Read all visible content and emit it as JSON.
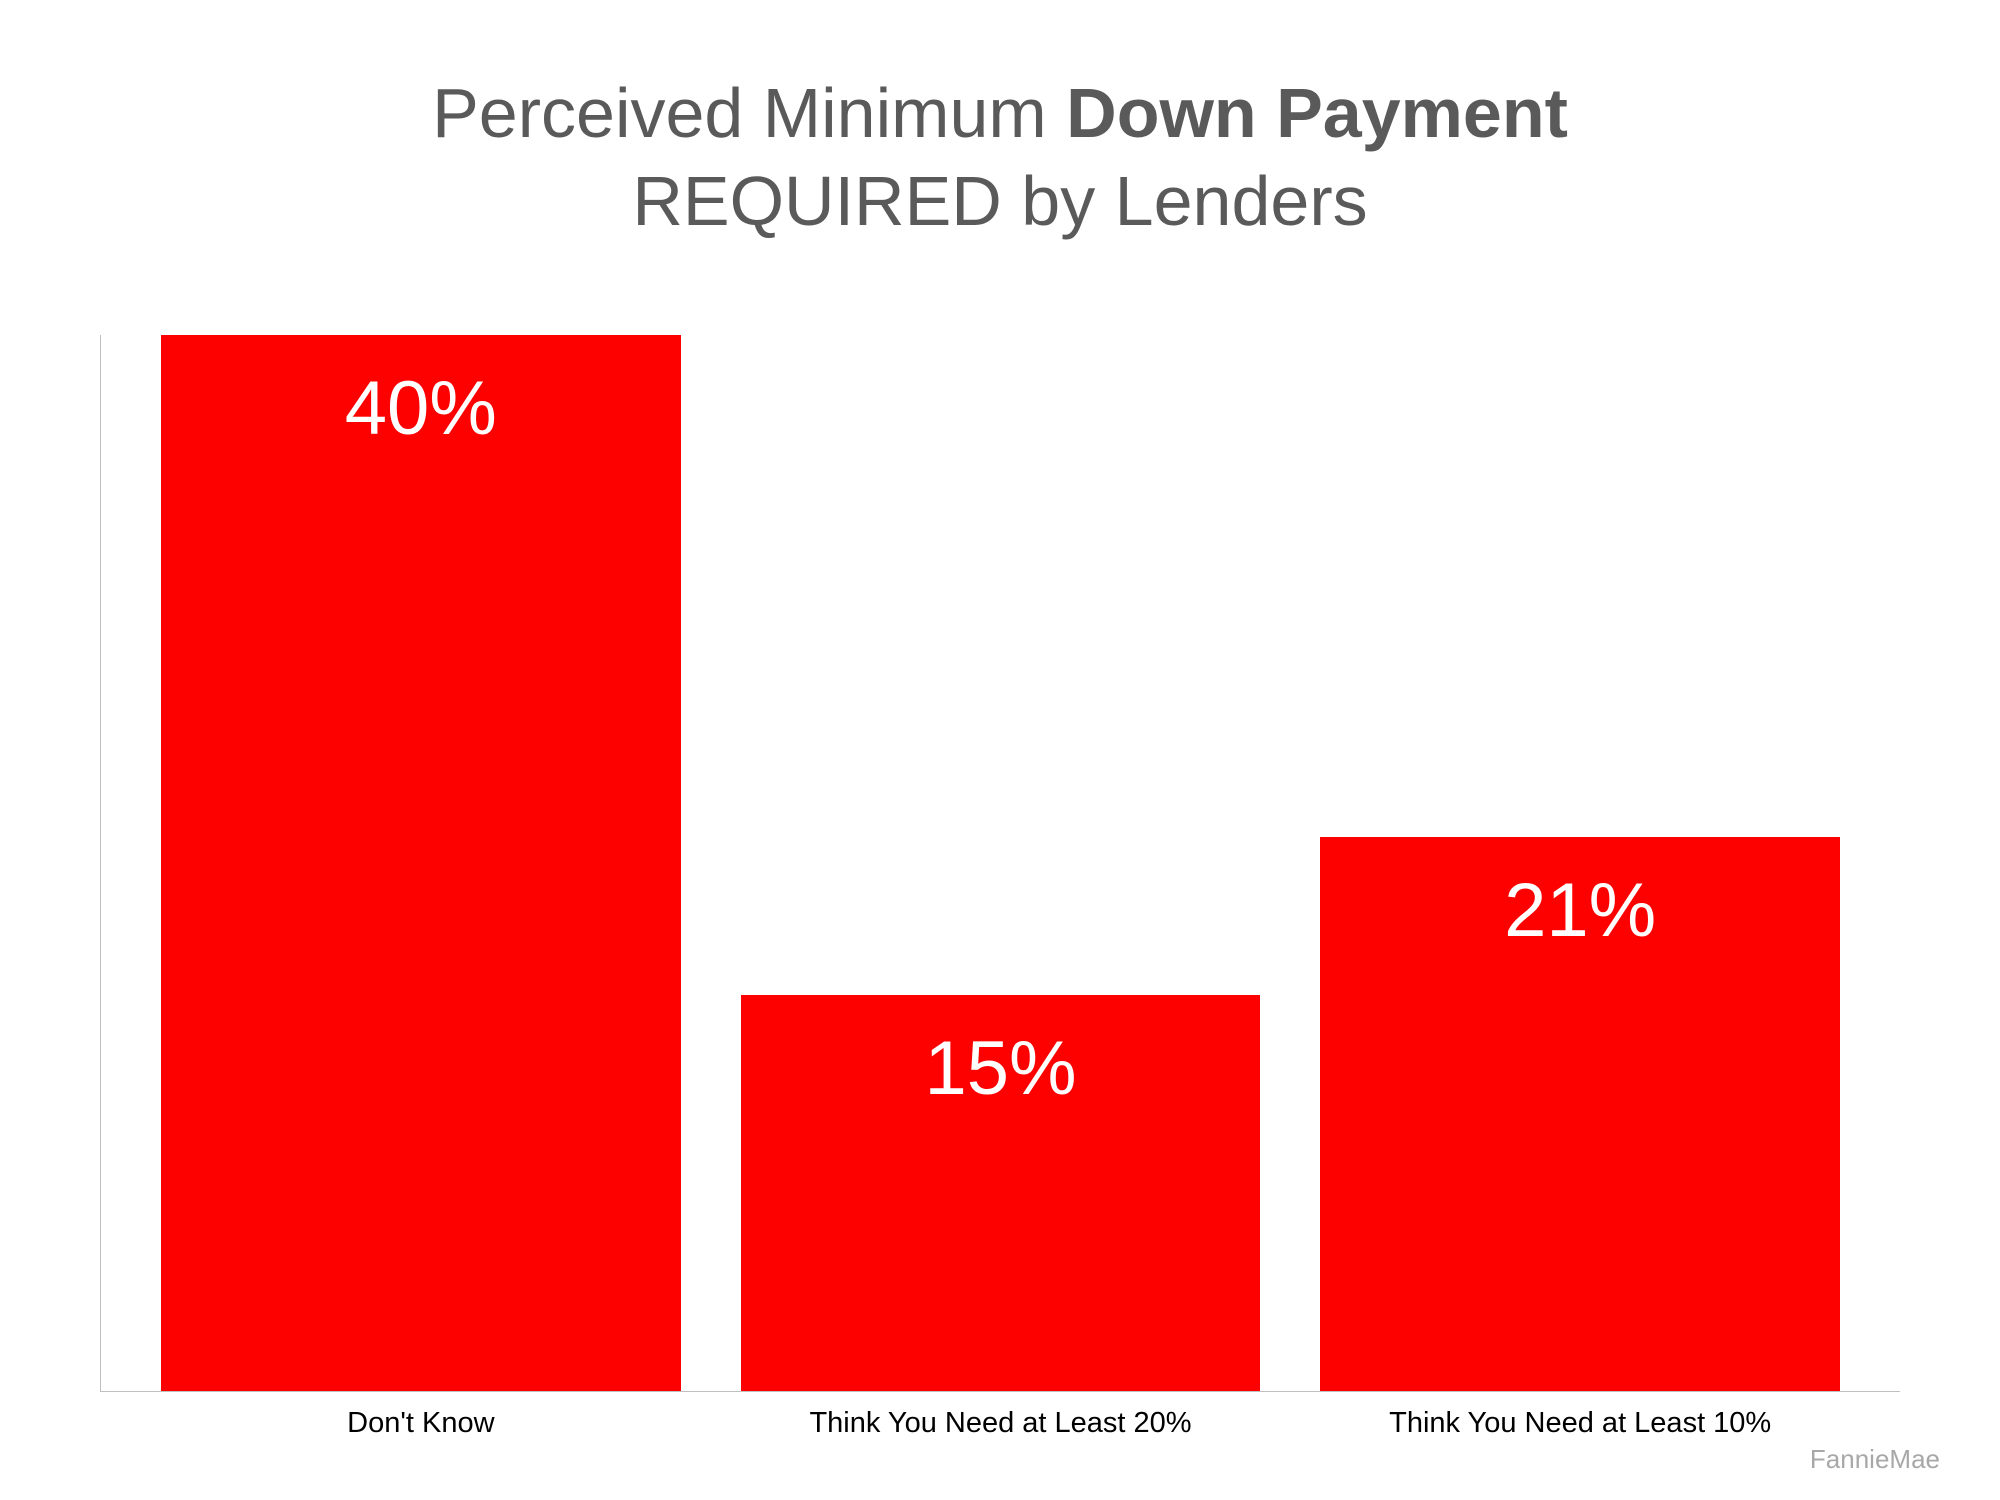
{
  "chart": {
    "type": "bar",
    "title_line1_prefix": "Perceived Minimum ",
    "title_line1_bold": "Down Payment",
    "title_line2": "REQUIRED by Lenders",
    "title_color": "#5a5a5a",
    "title_fontsize": 70,
    "background_color": "#ffffff",
    "axis_color": "#c0c0c0",
    "bars": [
      {
        "category": "Don't Know",
        "value": 40,
        "display_value": "40%",
        "height_pct": 100,
        "color": "#fd0100"
      },
      {
        "category": "Think You Need at Least 20%",
        "value": 15,
        "display_value": "15%",
        "height_pct": 37.5,
        "color": "#fd0100"
      },
      {
        "category": "Think You Need at Least 10%",
        "value": 21,
        "display_value": "21%",
        "height_pct": 52.5,
        "color": "#fd0100"
      }
    ],
    "bar_label_color": "#ffffff",
    "bar_label_fontsize": 76,
    "x_label_fontsize": 29,
    "x_label_color": "#000000",
    "ylim": [
      0,
      40
    ],
    "source": "FannieMae",
    "source_color": "#a8a8a8",
    "source_fontsize": 26
  }
}
